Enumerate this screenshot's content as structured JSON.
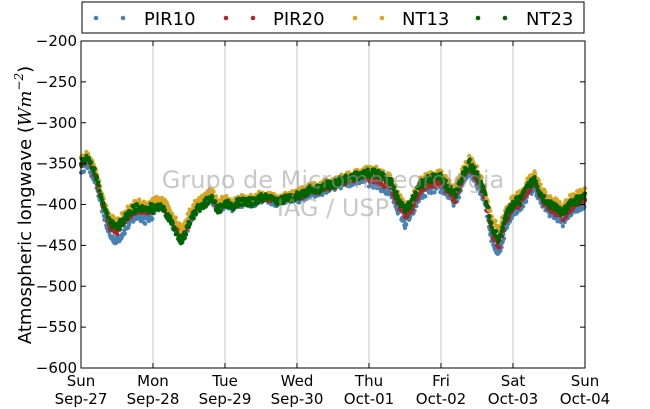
{
  "chart_data": {
    "type": "scatter",
    "ylabel_text": "Atmospheric longwave (",
    "ylabel_math": "Wm",
    "ylabel_exp": "−2",
    "ylabel_close": ")",
    "ylim": [
      -600,
      -200
    ],
    "yticks": [
      -200,
      -250,
      -300,
      -350,
      -400,
      -450,
      -500,
      -550,
      -600
    ],
    "ytick_labels": [
      "−200",
      "−250",
      "−300",
      "−350",
      "−400",
      "−450",
      "−500",
      "−550",
      "−600"
    ],
    "xlim": [
      0,
      7
    ],
    "xticks": [
      {
        "day": "Sun",
        "date": "Sep-27"
      },
      {
        "day": "Mon",
        "date": "Sep-28"
      },
      {
        "day": "Tue",
        "date": "Sep-29"
      },
      {
        "day": "Wed",
        "date": "Sep-30"
      },
      {
        "day": "Thu",
        "date": "Oct-01"
      },
      {
        "day": "Fri",
        "date": "Oct-02"
      },
      {
        "day": "Sat",
        "date": "Oct-03"
      },
      {
        "day": "Sun",
        "date": "Oct-04"
      }
    ],
    "grid": "vertical",
    "legend_position": "top",
    "watermark": [
      "Grupo de Micrometeorologia",
      "IAG / USP"
    ],
    "series": [
      {
        "name": "PIR10",
        "color": "#4682b4",
        "offset": [
          -12,
          -6,
          -3,
          -6,
          -16,
          -14,
          -14,
          -14
        ]
      },
      {
        "name": "PIR20",
        "color": "#a52a2a",
        "offset": [
          -4,
          -2,
          -1,
          -2,
          -8,
          -8,
          -8,
          -6
        ]
      },
      {
        "name": "NT13",
        "color": "#daa520",
        "offset": [
          2,
          2,
          2,
          2,
          2,
          2,
          2,
          2
        ]
      },
      {
        "name": "NT23",
        "color": "#006400",
        "offset": [
          -2,
          -6,
          -2,
          -1,
          -2,
          -4,
          -4,
          -4
        ]
      }
    ],
    "base_curve": {
      "x": [
        0.0,
        0.1,
        0.2,
        0.3,
        0.4,
        0.5,
        0.6,
        0.7,
        0.8,
        0.9,
        1.0,
        1.1,
        1.2,
        1.3,
        1.4,
        1.5,
        1.6,
        1.7,
        1.8,
        1.9,
        2.0,
        2.1,
        2.2,
        2.3,
        2.4,
        2.5,
        2.6,
        2.7,
        2.8,
        2.9,
        3.0,
        3.1,
        3.2,
        3.3,
        3.4,
        3.5,
        3.6,
        3.7,
        3.8,
        3.9,
        4.0,
        4.1,
        4.2,
        4.3,
        4.4,
        4.5,
        4.6,
        4.7,
        4.8,
        4.9,
        5.0,
        5.1,
        5.2,
        5.3,
        5.4,
        5.5,
        5.6,
        5.7,
        5.8,
        5.9,
        6.0,
        6.1,
        6.2,
        6.3,
        6.4,
        6.5,
        6.6,
        6.7,
        6.8,
        6.9,
        7.0
      ],
      "y": [
        -345,
        -340,
        -360,
        -395,
        -420,
        -425,
        -415,
        -405,
        -400,
        -405,
        -400,
        -395,
        -405,
        -420,
        -435,
        -415,
        -400,
        -395,
        -385,
        -400,
        -395,
        -400,
        -395,
        -395,
        -395,
        -390,
        -390,
        -395,
        -392,
        -390,
        -388,
        -385,
        -380,
        -380,
        -375,
        -375,
        -370,
        -368,
        -365,
        -362,
        -360,
        -360,
        -365,
        -370,
        -390,
        -405,
        -395,
        -375,
        -368,
        -365,
        -365,
        -375,
        -385,
        -360,
        -345,
        -360,
        -380,
        -420,
        -435,
        -410,
        -395,
        -390,
        -375,
        -365,
        -385,
        -395,
        -400,
        -405,
        -395,
        -390,
        -385
      ]
    },
    "samples_per_day": 120,
    "noise": 5
  }
}
